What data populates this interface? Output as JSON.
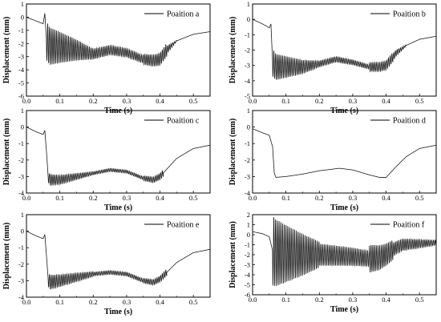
{
  "chart_data": [
    {
      "type": "line",
      "legend": "Poaition a",
      "xlabel": "Time  (s)",
      "ylabel": "Displacement  (mm)",
      "xlim": [
        0,
        0.55
      ],
      "ylim": [
        -6,
        1
      ],
      "xticks": [
        "0.0",
        "0.1",
        "0.2",
        "0.3",
        "0.4",
        "0.5"
      ],
      "yticks": [
        "1",
        "0",
        "-1",
        "-2",
        "-3",
        "-4",
        "-5",
        "-6"
      ],
      "legend_position": "top-right",
      "base_curve": {
        "x": [
          0,
          0.03,
          0.05,
          0.055,
          0.06,
          0.07,
          0.1,
          0.15,
          0.2,
          0.25,
          0.3,
          0.35,
          0.38,
          0.4,
          0.42,
          0.45,
          0.5,
          0.55
        ],
        "y": [
          0,
          -0.3,
          -0.5,
          0.3,
          -1.8,
          -2.2,
          -2.3,
          -2.5,
          -2.8,
          -2.5,
          -2.7,
          -3.2,
          -3.3,
          -3.2,
          -2.5,
          -1.8,
          -1.3,
          -1.1
        ]
      },
      "oscillation": [
        {
          "t0": 0.06,
          "t1": 0.2,
          "a0": 1.5,
          "a1": 0.4
        },
        {
          "t0": 0.2,
          "t1": 0.35,
          "a0": 0.4,
          "a1": 0.3
        },
        {
          "t0": 0.35,
          "t1": 0.42,
          "a0": 0.4,
          "a1": 0.5
        },
        {
          "t0": 0.42,
          "t1": 0.45,
          "a0": 0.3,
          "a1": 0.05
        }
      ]
    },
    {
      "type": "line",
      "legend": "Poaition b",
      "xlabel": "Time  (s)",
      "ylabel": "Displacement  (mm)",
      "xlim": [
        0,
        0.55
      ],
      "ylim": [
        -5,
        1
      ],
      "xticks": [
        "0.0",
        "0.1",
        "0.2",
        "0.3",
        "0.4",
        "0.5"
      ],
      "yticks": [
        "1",
        "0",
        "-1",
        "-2",
        "-3",
        "-4",
        "-5"
      ],
      "legend_position": "top-right",
      "base_curve": {
        "x": [
          0,
          0.03,
          0.05,
          0.055,
          0.06,
          0.07,
          0.1,
          0.15,
          0.2,
          0.25,
          0.3,
          0.35,
          0.38,
          0.4,
          0.43,
          0.46,
          0.5,
          0.55
        ],
        "y": [
          0,
          -0.3,
          -0.55,
          -0.3,
          -2.8,
          -3.1,
          -3.1,
          -3.1,
          -2.9,
          -2.6,
          -2.8,
          -3.1,
          -3.1,
          -3.0,
          -2.2,
          -1.7,
          -1.3,
          -1.1
        ]
      },
      "oscillation": [
        {
          "t0": 0.06,
          "t1": 0.2,
          "a0": 0.9,
          "a1": 0.2
        },
        {
          "t0": 0.2,
          "t1": 0.35,
          "a0": 0.2,
          "a1": 0.15
        },
        {
          "t0": 0.35,
          "t1": 0.42,
          "a0": 0.3,
          "a1": 0.3
        },
        {
          "t0": 0.42,
          "t1": 0.46,
          "a0": 0.25,
          "a1": 0.05
        }
      ]
    },
    {
      "type": "line",
      "legend": "Poaition c",
      "xlabel": "Time  (s)",
      "ylabel": "Displacement  (mm)",
      "xlim": [
        0,
        0.55
      ],
      "ylim": [
        -4,
        1
      ],
      "xticks": [
        "0.0",
        "0.1",
        "0.2",
        "0.3",
        "0.4",
        "0.5"
      ],
      "yticks": [
        "1",
        "0",
        "-1",
        "-2",
        "-3",
        "-4"
      ],
      "legend_position": "top-right",
      "base_curve": {
        "x": [
          0,
          0.03,
          0.05,
          0.055,
          0.06,
          0.065,
          0.07,
          0.1,
          0.15,
          0.2,
          0.25,
          0.3,
          0.35,
          0.38,
          0.4,
          0.45,
          0.5,
          0.55
        ],
        "y": [
          0,
          -0.3,
          -0.45,
          -0.2,
          -1.5,
          -3.0,
          -3.2,
          -3.2,
          -3.0,
          -2.8,
          -2.6,
          -2.7,
          -3.1,
          -3.2,
          -3.0,
          -1.9,
          -1.3,
          -1.1
        ]
      },
      "oscillation": [
        {
          "t0": 0.065,
          "t1": 0.2,
          "a0": 0.35,
          "a1": 0.1
        },
        {
          "t0": 0.2,
          "t1": 0.35,
          "a0": 0.1,
          "a1": 0.1
        },
        {
          "t0": 0.35,
          "t1": 0.41,
          "a0": 0.15,
          "a1": 0.2
        }
      ]
    },
    {
      "type": "line",
      "legend": "Poaition d",
      "xlabel": "Time  (s)",
      "ylabel": "Displacement  (mm)",
      "xlim": [
        0,
        0.55
      ],
      "ylim": [
        -4,
        1
      ],
      "xticks": [
        "0.0",
        "0.1",
        "0.2",
        "0.3",
        "0.4",
        "0.5"
      ],
      "yticks": [
        "1",
        "0",
        "-1",
        "-2",
        "-3",
        "-4"
      ],
      "legend_position": "top-right",
      "base_curve": {
        "x": [
          0,
          0.03,
          0.05,
          0.06,
          0.065,
          0.07,
          0.1,
          0.15,
          0.2,
          0.26,
          0.3,
          0.35,
          0.38,
          0.4,
          0.43,
          0.46,
          0.5,
          0.55
        ],
        "y": [
          -0.1,
          -0.35,
          -0.5,
          -1.2,
          -2.8,
          -3.05,
          -3.0,
          -2.85,
          -2.65,
          -2.5,
          -2.6,
          -2.9,
          -3.05,
          -3.05,
          -2.4,
          -1.8,
          -1.3,
          -1.1
        ]
      },
      "oscillation": []
    },
    {
      "type": "line",
      "legend": "Poaition e",
      "xlabel": "Time  (s)",
      "ylabel": "Displacement  (mm)",
      "xlim": [
        0,
        0.55
      ],
      "ylim": [
        -4,
        1
      ],
      "xticks": [
        "0.0",
        "0.1",
        "0.2",
        "0.3",
        "0.4",
        "0.5"
      ],
      "yticks": [
        "1",
        "0",
        "-1",
        "-2",
        "-3",
        "-4"
      ],
      "legend_position": "top-right",
      "base_curve": {
        "x": [
          0,
          0.03,
          0.05,
          0.055,
          0.06,
          0.065,
          0.07,
          0.1,
          0.15,
          0.2,
          0.25,
          0.3,
          0.35,
          0.38,
          0.4,
          0.45,
          0.5,
          0.55
        ],
        "y": [
          0,
          -0.3,
          -0.45,
          -0.2,
          -1.5,
          -2.9,
          -3.1,
          -3.0,
          -2.8,
          -2.6,
          -2.5,
          -2.6,
          -3.0,
          -3.1,
          -2.9,
          -1.9,
          -1.3,
          -1.1
        ]
      },
      "oscillation": [
        {
          "t0": 0.065,
          "t1": 0.2,
          "a0": 0.45,
          "a1": 0.15
        },
        {
          "t0": 0.2,
          "t1": 0.35,
          "a0": 0.12,
          "a1": 0.12
        },
        {
          "t0": 0.35,
          "t1": 0.42,
          "a0": 0.15,
          "a1": 0.2
        }
      ]
    },
    {
      "type": "line",
      "legend": "Poaition f",
      "xlabel": "Time  (s)",
      "ylabel": "Displacement  (mm)",
      "xlim": [
        0,
        0.55
      ],
      "ylim": [
        -6,
        2
      ],
      "xticks": [
        "0.0",
        "0.1",
        "0.2",
        "0.3",
        "0.4",
        "0.5"
      ],
      "yticks": [
        "2",
        "1",
        "0",
        "-1",
        "-2",
        "-3",
        "-4",
        "-5",
        "-6"
      ],
      "legend_position": "top-right",
      "base_curve": {
        "x": [
          0,
          0.03,
          0.05,
          0.06,
          0.07,
          0.1,
          0.15,
          0.2,
          0.25,
          0.3,
          0.35,
          0.38,
          0.4,
          0.43,
          0.45,
          0.5,
          0.55
        ],
        "y": [
          0.3,
          0.1,
          -0.2,
          -1.6,
          -1.8,
          -1.9,
          -2.0,
          -2.0,
          -2.1,
          -2.2,
          -2.4,
          -2.3,
          -2.0,
          -1.3,
          -1.0,
          -0.9,
          -0.8
        ]
      },
      "oscillation": [
        {
          "t0": 0.06,
          "t1": 0.2,
          "a0": 3.5,
          "a1": 1.3
        },
        {
          "t0": 0.2,
          "t1": 0.35,
          "a0": 1.1,
          "a1": 0.8
        },
        {
          "t0": 0.35,
          "t1": 0.42,
          "a0": 1.4,
          "a1": 1.0
        },
        {
          "t0": 0.42,
          "t1": 0.55,
          "a0": 0.7,
          "a1": 0.25
        }
      ]
    }
  ]
}
